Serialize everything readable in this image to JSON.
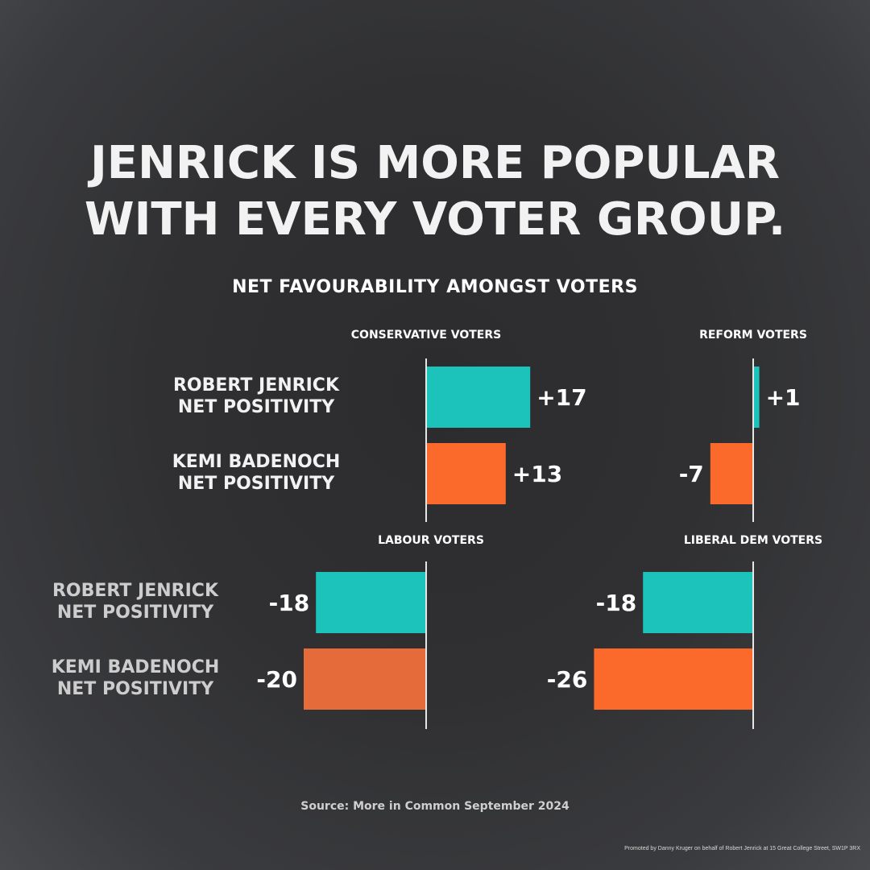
{
  "headline": {
    "line1": "JENRICK IS MORE POPULAR",
    "line2": "WITH EVERY VOTER GROUP."
  },
  "subtitle": "NET FAVOURABILITY AMONGST VOTERS",
  "source": "Source: More in Common September 2024",
  "imprint": "Promoted by Danny Kruger on behalf of Robert Jenrick at 15 Great College Street, SW1P 3RX",
  "colors": {
    "jenrick": "#1cc3bb",
    "badenoch": "#fc6a2b",
    "badenoch_labour": "#e56b3a",
    "axis": "#e6e6e6",
    "label_light": "#f2f2f2",
    "label_dim": "#cdcdcd"
  },
  "chart_data": [
    {
      "type": "bar",
      "title": "CONSERVATIVE VOTERS",
      "categories": [
        "ROBERT JENRICK\nNET POSITIVITY",
        "KEMI BADENOCH\nNET POSITIVITY"
      ],
      "values": [
        17,
        13
      ],
      "value_labels": [
        "+17",
        "+13"
      ]
    },
    {
      "type": "bar",
      "title": "REFORM VOTERS",
      "categories": [
        "ROBERT JENRICK\nNET POSITIVITY",
        "KEMI BADENOCH\nNET POSITIVITY"
      ],
      "values": [
        1,
        -7
      ],
      "value_labels": [
        "+1",
        "-7"
      ]
    },
    {
      "type": "bar",
      "title": "LABOUR VOTERS",
      "categories": [
        "ROBERT JENRICK\nNET POSITIVITY",
        "KEMI BADENOCH\nNET POSITIVITY"
      ],
      "values": [
        -18,
        -20
      ],
      "value_labels": [
        "-18",
        "-20"
      ]
    },
    {
      "type": "bar",
      "title": "LIBERAL DEM VOTERS",
      "categories": [
        "ROBERT JENRICK\nNET POSITIVITY",
        "KEMI BADENOCH\nNET POSITIVITY"
      ],
      "values": [
        -18,
        -26
      ],
      "value_labels": [
        "-18",
        "-26"
      ]
    }
  ]
}
